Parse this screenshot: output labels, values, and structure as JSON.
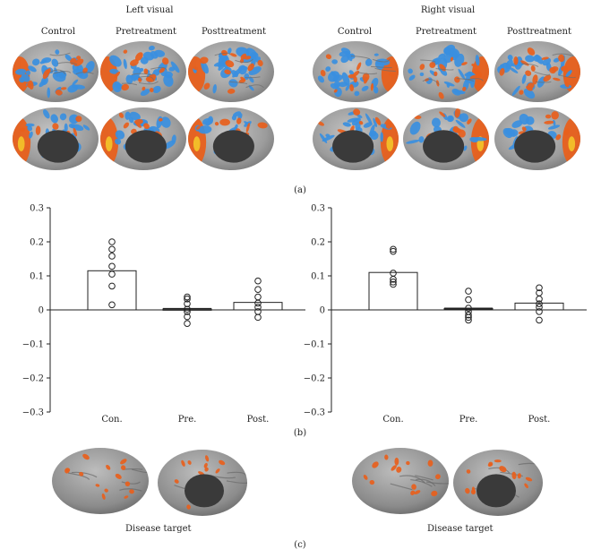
{
  "panel_a": {
    "left_title": "Left visual",
    "right_title": "Right visual",
    "left_columns": [
      "Control",
      "Pretreatment",
      "Posttreatment"
    ],
    "right_columns": [
      "Control",
      "Pretreatment",
      "Posttreatment"
    ],
    "letter": "(a)",
    "colors": {
      "cortex": "#a8a8a8",
      "positive": "#e8601c",
      "negative": "#3a8fe0",
      "medial_wall": "#3a3a3a"
    }
  },
  "panel_b": {
    "letter": "(b)"
  },
  "panel_c": {
    "left_caption": "Disease target",
    "right_caption": "Disease target",
    "letter": "(c)"
  },
  "chart_data": [
    {
      "type": "bar",
      "categories": [
        "Con.",
        "Pre.",
        "Post."
      ],
      "values": [
        0.115,
        0.003,
        0.022
      ],
      "points": [
        [
          0.2,
          0.178,
          0.158,
          0.128,
          0.105,
          0.07,
          0.015
        ],
        [
          0.038,
          0.032,
          0.018,
          0.002,
          -0.005,
          -0.02,
          -0.04
        ],
        [
          0.085,
          0.06,
          0.038,
          0.02,
          0.008,
          -0.005,
          -0.022
        ]
      ],
      "ylim": [
        -0.3,
        0.3
      ],
      "yticks": [
        "0.3",
        "0.2",
        "0.1",
        "0",
        "−0.1",
        "−0.2",
        "−0.3"
      ],
      "ytick_values": [
        0.3,
        0.2,
        0.1,
        0,
        -0.1,
        -0.2,
        -0.3
      ]
    },
    {
      "type": "bar",
      "categories": [
        "Con.",
        "Pre.",
        "Post."
      ],
      "values": [
        0.11,
        0.004,
        0.02
      ],
      "points": [
        [
          0.178,
          0.172,
          0.108,
          0.09,
          0.082,
          0.075
        ],
        [
          0.055,
          0.03,
          0.005,
          -0.005,
          -0.015,
          -0.022,
          -0.03
        ],
        [
          0.065,
          0.05,
          0.032,
          0.018,
          0.008,
          -0.005,
          -0.03
        ]
      ],
      "ylim": [
        -0.3,
        0.3
      ],
      "yticks": [
        "0.3",
        "0.2",
        "0.1",
        "0",
        "−0.1",
        "−0.2",
        "−0.3"
      ],
      "ytick_values": [
        0.3,
        0.2,
        0.1,
        0,
        -0.1,
        -0.2,
        -0.3
      ]
    }
  ]
}
